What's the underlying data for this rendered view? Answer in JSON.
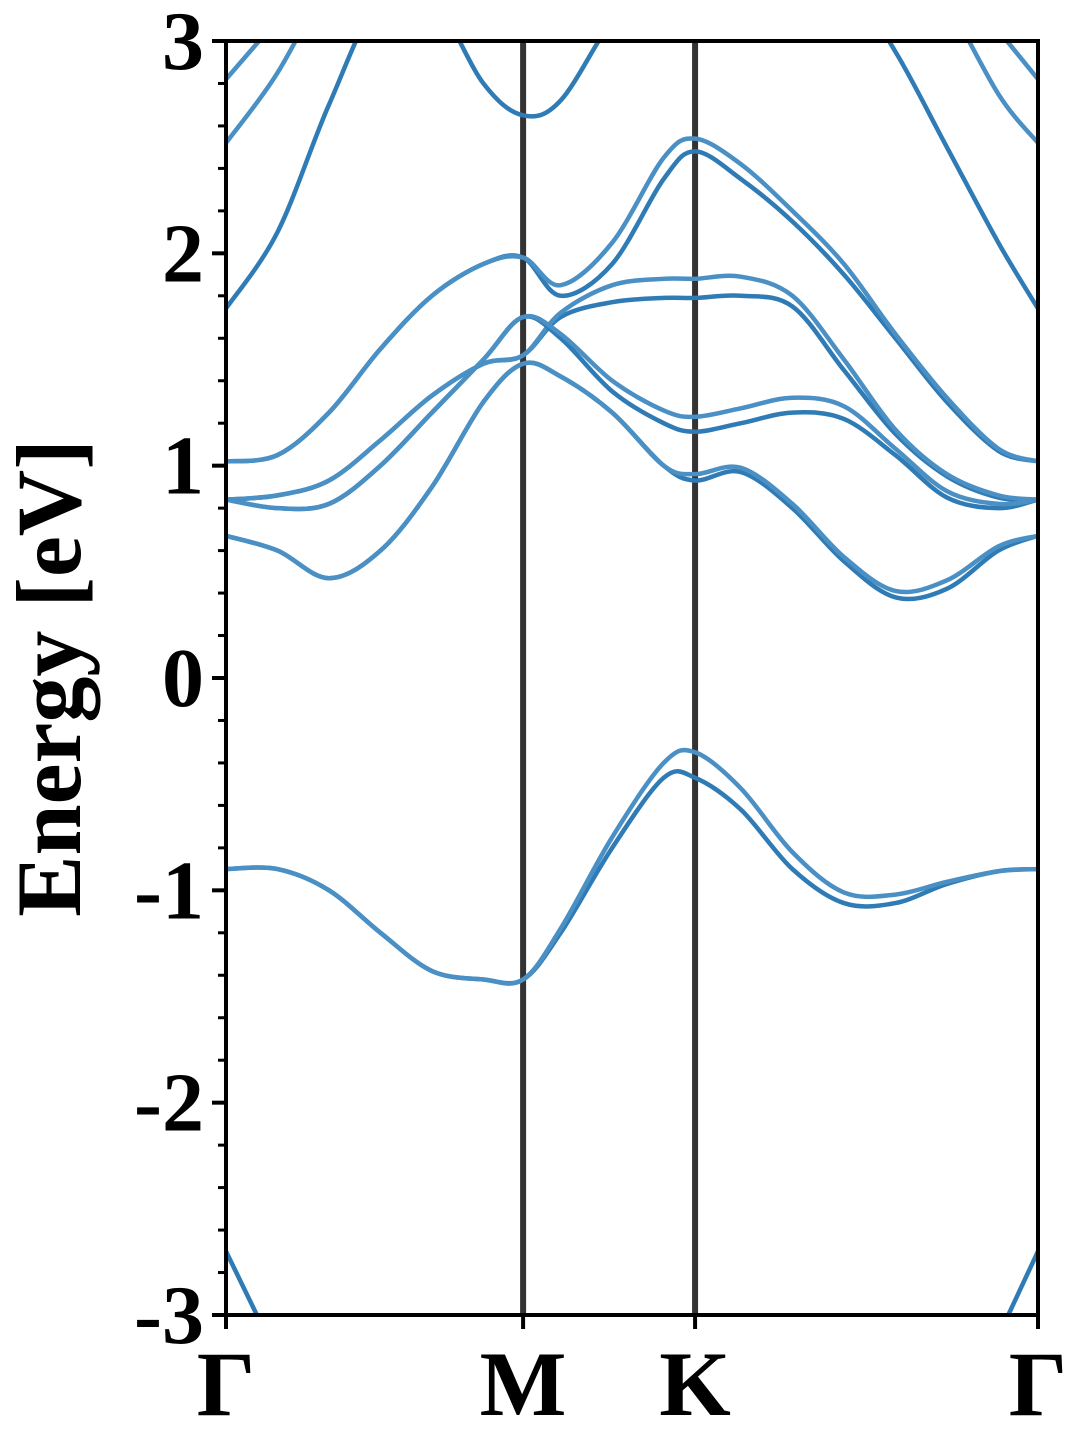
{
  "chart_data": {
    "type": "line",
    "ylabel": "Energy [eV]",
    "x": [
      0,
      0.1,
      0.2,
      0.3,
      0.4,
      0.5,
      0.577,
      0.65,
      0.75,
      0.85,
      0.911,
      1.0,
      1.1,
      1.2,
      1.3,
      1.4,
      1.5,
      1.577
    ],
    "xlim": [
      0,
      1.577
    ],
    "xticks": [
      {
        "value": 0,
        "label": "Γ"
      },
      {
        "value": 0.577,
        "label": "M"
      },
      {
        "value": 0.911,
        "label": "K"
      },
      {
        "value": 1.577,
        "label": "Γ"
      }
    ],
    "ylim": [
      -3,
      3
    ],
    "yticks": [
      -3,
      -2,
      -1,
      0,
      1,
      2,
      3
    ],
    "yminorticks": [
      -2.8,
      -2.6,
      -2.4,
      -2.2,
      -1.8,
      -1.6,
      -1.4,
      -1.2,
      -0.8,
      -0.6,
      -0.4,
      -0.2,
      0.2,
      0.4,
      0.6,
      0.8,
      1.2,
      1.4,
      1.6,
      1.8,
      2.2,
      2.4,
      2.6,
      2.8
    ],
    "symmetry_line_color": "#333333",
    "series": [
      {
        "color": "#2f7bb5",
        "values": [
          -0.9,
          -0.9,
          -1.0,
          -1.2,
          -1.38,
          -1.42,
          -1.42,
          -1.2,
          -0.8,
          -0.47,
          -0.47,
          -0.62,
          -0.9,
          -1.06,
          -1.06,
          -0.97,
          -0.91,
          -0.9
        ]
      },
      {
        "color": "#4a90c4",
        "values": [
          -0.9,
          -0.9,
          -1.0,
          -1.2,
          -1.38,
          -1.42,
          -1.42,
          -1.18,
          -0.75,
          -0.4,
          -0.35,
          -0.52,
          -0.82,
          -1.01,
          -1.02,
          -0.96,
          -0.91,
          -0.9
        ]
      },
      {
        "color": "#2f7bb5",
        "values": [
          0.67,
          0.6,
          0.47,
          0.6,
          0.9,
          1.3,
          1.48,
          1.42,
          1.25,
          1.0,
          0.93,
          0.97,
          0.8,
          0.55,
          0.38,
          0.42,
          0.6,
          0.67
        ]
      },
      {
        "color": "#4a90c4",
        "values": [
          0.67,
          0.6,
          0.47,
          0.6,
          0.9,
          1.3,
          1.48,
          1.42,
          1.25,
          1.0,
          0.96,
          0.99,
          0.82,
          0.57,
          0.41,
          0.46,
          0.62,
          0.67
        ]
      },
      {
        "color": "#2f7bb5",
        "values": [
          0.84,
          0.86,
          0.93,
          1.12,
          1.33,
          1.48,
          1.52,
          1.7,
          1.77,
          1.79,
          1.79,
          1.8,
          1.75,
          1.45,
          1.15,
          0.95,
          0.85,
          0.84
        ]
      },
      {
        "color": "#4a90c4",
        "values": [
          0.84,
          0.86,
          0.93,
          1.12,
          1.33,
          1.48,
          1.52,
          1.72,
          1.85,
          1.88,
          1.88,
          1.89,
          1.8,
          1.5,
          1.17,
          0.96,
          0.86,
          0.84
        ]
      },
      {
        "color": "#2f7bb5",
        "values": [
          0.84,
          0.8,
          0.82,
          1.0,
          1.25,
          1.5,
          1.7,
          1.6,
          1.35,
          1.2,
          1.16,
          1.2,
          1.25,
          1.22,
          1.05,
          0.85,
          0.8,
          0.84
        ]
      },
      {
        "color": "#4a90c4",
        "values": [
          0.84,
          0.8,
          0.82,
          1.0,
          1.25,
          1.5,
          1.7,
          1.62,
          1.4,
          1.26,
          1.23,
          1.27,
          1.32,
          1.28,
          1.08,
          0.88,
          0.82,
          0.84
        ]
      },
      {
        "color": "#2f7bb5",
        "values": [
          1.02,
          1.05,
          1.25,
          1.55,
          1.8,
          1.95,
          1.98,
          1.8,
          1.95,
          2.35,
          2.48,
          2.35,
          2.15,
          1.9,
          1.6,
          1.3,
          1.07,
          1.02
        ]
      },
      {
        "color": "#4a90c4",
        "values": [
          1.02,
          1.05,
          1.25,
          1.55,
          1.8,
          1.95,
          1.98,
          1.85,
          2.05,
          2.45,
          2.54,
          2.42,
          2.2,
          1.95,
          1.62,
          1.32,
          1.08,
          1.02
        ]
      },
      {
        "color": "#2f7bb5",
        "values": [
          1.74,
          2.1,
          2.7,
          3.2,
          3.2,
          2.8,
          2.65,
          2.72,
          3.1,
          3.4,
          3.5,
          3.5,
          3.4,
          3.3,
          2.95,
          2.5,
          2.05,
          1.74
        ]
      },
      {
        "color": "#4a90c4",
        "values": [
          2.52,
          2.85,
          3.3,
          null,
          null,
          null,
          null,
          null,
          null,
          null,
          null,
          null,
          null,
          null,
          null,
          3.2,
          2.75,
          2.52
        ]
      },
      {
        "color": "#4a90c4",
        "values": [
          2.82,
          3.1,
          null,
          null,
          null,
          null,
          null,
          null,
          null,
          null,
          null,
          null,
          null,
          null,
          null,
          null,
          3.05,
          2.82
        ]
      },
      {
        "color": "#2f7bb5",
        "values": [
          -2.7,
          -3.2,
          null,
          null,
          null,
          null,
          null,
          null,
          null,
          null,
          null,
          null,
          null,
          null,
          null,
          null,
          -3.1,
          -2.7
        ]
      }
    ]
  }
}
